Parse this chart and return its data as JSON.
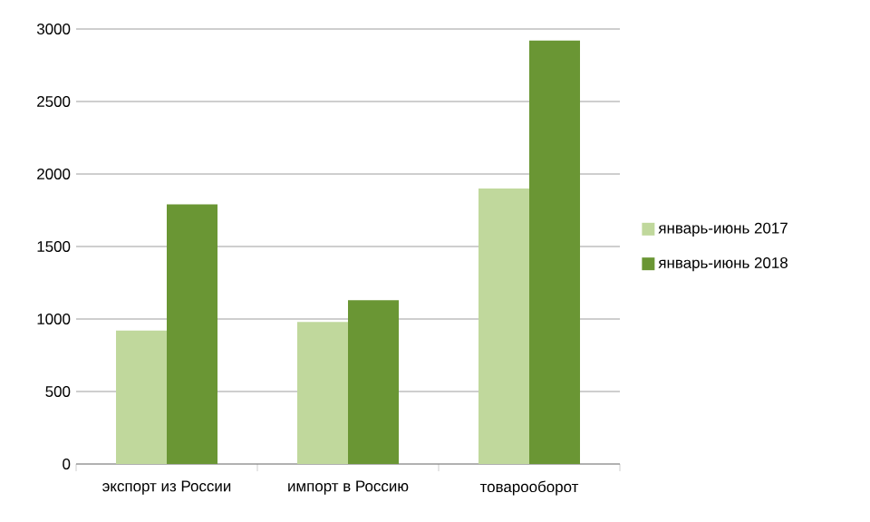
{
  "chart_data": {
    "type": "bar",
    "categories": [
      "экспорт из России",
      "импорт в Россию",
      "товарооборот"
    ],
    "series": [
      {
        "name": "январь-июнь 2017",
        "color": "#c0d89c",
        "values": [
          920,
          980,
          1900
        ]
      },
      {
        "name": "январь-июнь 2018",
        "color": "#6a9634",
        "values": [
          1790,
          1130,
          2920
        ]
      }
    ],
    "ylim": [
      0,
      3000
    ],
    "yticks": [
      0,
      500,
      1000,
      1500,
      2000,
      2500,
      3000
    ],
    "grid": "y",
    "legend": "right"
  }
}
